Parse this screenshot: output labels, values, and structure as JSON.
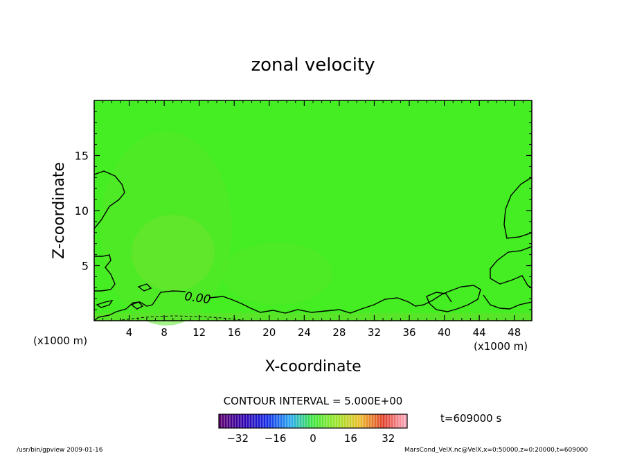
{
  "chart_data": {
    "type": "heatmap",
    "title": "zonal velocity",
    "xlabel": "X-coordinate",
    "ylabel": "Z-coordinate",
    "x_unit_label": "(x1000 m)",
    "z_unit_label": "(x1000 m)",
    "xlim": [
      0,
      50
    ],
    "ylim": [
      0,
      20
    ],
    "x_ticks": [
      4,
      8,
      12,
      16,
      20,
      24,
      28,
      32,
      36,
      40,
      44,
      48
    ],
    "y_ticks": [
      5,
      10,
      15
    ],
    "contour_label": "0.00",
    "contour_interval_text": "CONTOUR INTERVAL = 5.000E+00",
    "time_text": "t=609000 s",
    "colorbar": {
      "ticks": [
        -32,
        -16,
        0,
        16,
        32
      ],
      "range": [
        -40,
        40
      ]
    },
    "field_value_approx": 0
  },
  "footer": {
    "left": "/usr/bin/gpview   2009-01-16",
    "right": "MarsCond_VelX.nc@VelX,x=0:50000,z=0:20000,t=609000"
  },
  "colors": {
    "field": "#44ee22",
    "field_light": "#66e82c",
    "contour": "#000000"
  }
}
